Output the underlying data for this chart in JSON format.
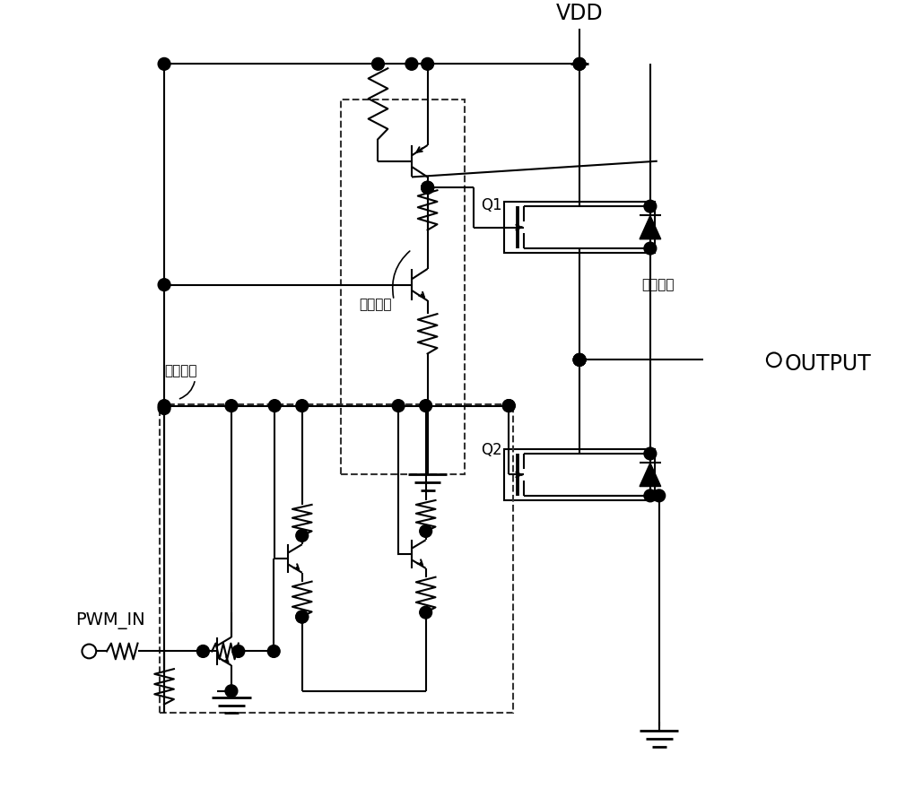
{
  "bg": "#ffffff",
  "lc": "#000000",
  "lw": 1.5,
  "vdd_label": "VDD",
  "output_label": "OUTPUT",
  "pwm_label": "PWM_IN",
  "q1_label": "Q1",
  "q2_label": "Q2",
  "drive_upper": "驱动电路",
  "drive_right": "驱动电路",
  "drive_lower": "驱动电路"
}
